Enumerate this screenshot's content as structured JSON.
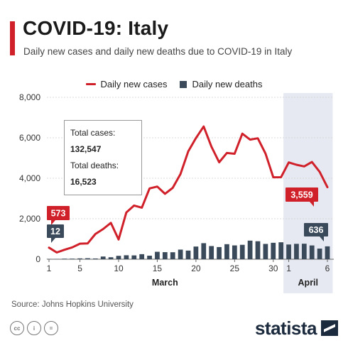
{
  "header": {
    "title": "COVID-19: Italy",
    "subtitle": "Daily new cases and daily new deaths due to COVID-19 in Italy"
  },
  "legend": {
    "cases_label": "Daily new cases",
    "deaths_label": "Daily new deaths"
  },
  "annotation": {
    "total_cases_label": "Total cases:",
    "total_cases_value": "132,547",
    "total_deaths_label": "Total deaths:",
    "total_deaths_value": "16,523"
  },
  "callouts": {
    "first_cases": "573",
    "first_deaths": "12",
    "last_cases": "3,559",
    "last_deaths": "636"
  },
  "footer": {
    "source": "Source: Johns Hopkins University",
    "brand": "statista"
  },
  "colors": {
    "cases": "#d0202a",
    "deaths": "#3a4a5a",
    "callout_deaths": "#3a4a5a",
    "april_shade": "#e6e9f1"
  },
  "chart_data": {
    "type": "bar+line",
    "title": "COVID-19: Italy",
    "subtitle": "Daily new cases and daily new deaths due to COVID-19 in Italy",
    "ylim": [
      0,
      8000
    ],
    "yticks": [
      "0",
      "2,000",
      "4,000",
      "6,000",
      "8,000"
    ],
    "x_tick_labels": [
      {
        "index": 0,
        "label": "1"
      },
      {
        "index": 4,
        "label": "5"
      },
      {
        "index": 9,
        "label": "10"
      },
      {
        "index": 14,
        "label": "15"
      },
      {
        "index": 19,
        "label": "20"
      },
      {
        "index": 24,
        "label": "25"
      },
      {
        "index": 29,
        "label": "30"
      },
      {
        "index": 31,
        "label": "1"
      },
      {
        "index": 36,
        "label": "6"
      }
    ],
    "month_labels": [
      {
        "label": "March",
        "center_index": 15
      },
      {
        "label": "April",
        "center_index": 33.5
      }
    ],
    "highlight_range": [
      31,
      36
    ],
    "categories": [
      "Mar 1",
      "Mar 2",
      "Mar 3",
      "Mar 4",
      "Mar 5",
      "Mar 6",
      "Mar 7",
      "Mar 8",
      "Mar 9",
      "Mar 10",
      "Mar 11",
      "Mar 12",
      "Mar 13",
      "Mar 14",
      "Mar 15",
      "Mar 16",
      "Mar 17",
      "Mar 18",
      "Mar 19",
      "Mar 20",
      "Mar 21",
      "Mar 22",
      "Mar 23",
      "Mar 24",
      "Mar 25",
      "Mar 26",
      "Mar 27",
      "Mar 28",
      "Mar 29",
      "Mar 30",
      "Mar 31",
      "Apr 1",
      "Apr 2",
      "Apr 3",
      "Apr 4",
      "Apr 5",
      "Apr 6"
    ],
    "series": [
      {
        "name": "Daily new cases",
        "type": "line",
        "values": [
          573,
          335,
          466,
          587,
          769,
          778,
          1247,
          1492,
          1797,
          977,
          2313,
          2651,
          2547,
          3497,
          3590,
          3233,
          3526,
          4207,
          5322,
          5986,
          6557,
          5560,
          4789,
          5249,
          5210,
          6203,
          5909,
          5974,
          5217,
          4050,
          4053,
          4782,
          4668,
          4585,
          4805,
          4316,
          3559
        ]
      },
      {
        "name": "Daily new deaths",
        "type": "bar",
        "values": [
          12,
          11,
          27,
          28,
          41,
          49,
          36,
          133,
          97,
          168,
          196,
          189,
          250,
          175,
          368,
          349,
          345,
          475,
          427,
          627,
          793,
          651,
          601,
          743,
          683,
          712,
          919,
          889,
          756,
          812,
          837,
          727,
          760,
          766,
          681,
          525,
          636
        ]
      }
    ]
  }
}
